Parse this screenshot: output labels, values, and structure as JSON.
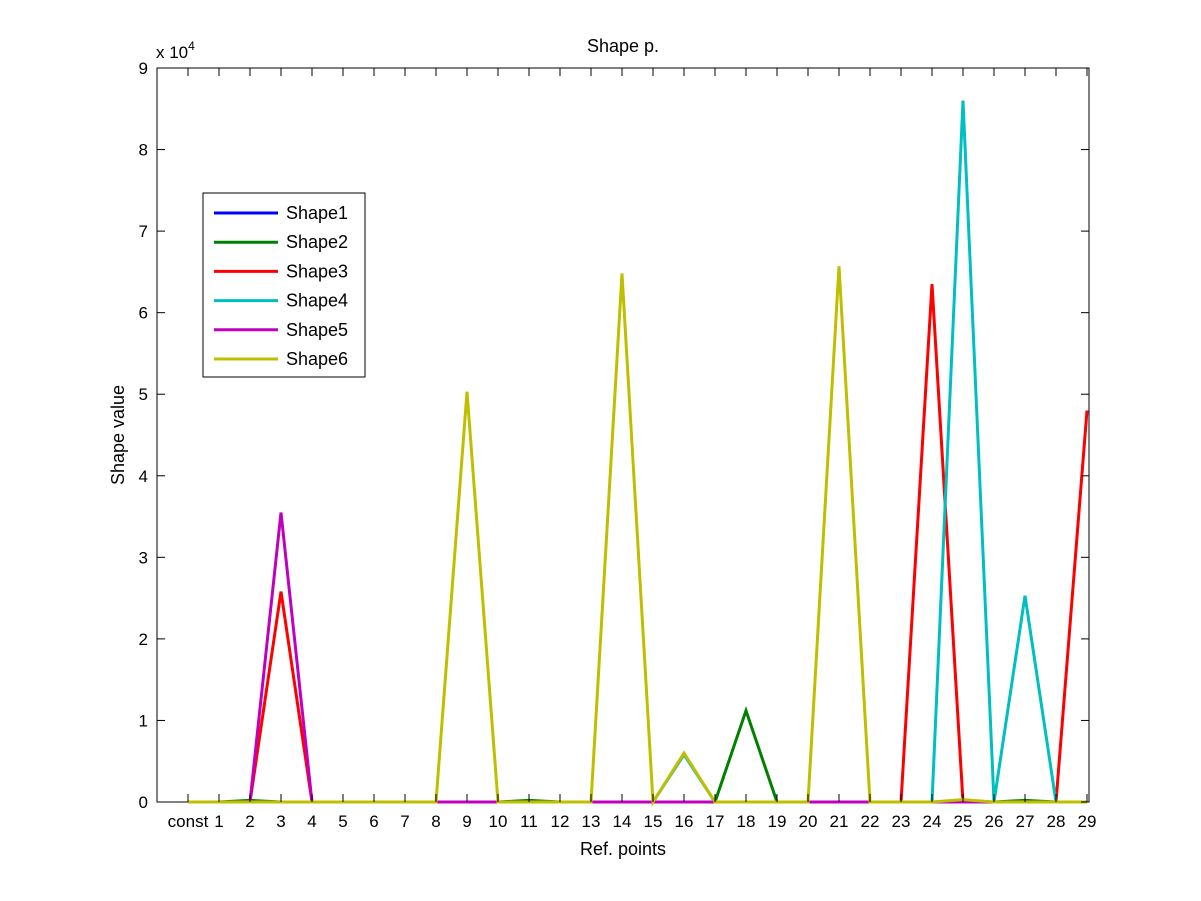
{
  "chart_data": {
    "type": "line",
    "title": "Shape p.",
    "xlabel": "Ref. points",
    "ylabel": "Shape value",
    "y_exponent_label": "x 10",
    "y_exponent_power": "4",
    "categories": [
      "const",
      "1",
      "2",
      "3",
      "4",
      "5",
      "6",
      "7",
      "8",
      "9",
      "10",
      "11",
      "12",
      "13",
      "14",
      "15",
      "16",
      "17",
      "18",
      "19",
      "20",
      "21",
      "22",
      "23",
      "24",
      "25",
      "26",
      "27",
      "28",
      "29"
    ],
    "ylim": [
      0,
      90000
    ],
    "yticks": [
      0,
      10000,
      20000,
      30000,
      40000,
      50000,
      60000,
      70000,
      80000,
      90000
    ],
    "ytick_labels": [
      "0",
      "1",
      "2",
      "3",
      "4",
      "5",
      "6",
      "7",
      "8",
      "9"
    ],
    "grid": false,
    "legend_position": "top-left",
    "series": [
      {
        "name": "Shape1",
        "color": "#0000ff",
        "values": [
          0,
          0,
          0,
          0,
          0,
          0,
          0,
          0,
          0,
          0,
          0,
          0,
          0,
          0,
          0,
          0,
          0,
          0,
          0,
          0,
          0,
          0,
          0,
          0,
          0,
          0,
          0,
          0,
          0,
          0
        ]
      },
      {
        "name": "Shape2",
        "color": "#008000",
        "values": [
          0,
          0,
          200,
          0,
          0,
          0,
          0,
          0,
          0,
          0,
          0,
          200,
          0,
          0,
          0,
          0,
          0,
          0,
          11200,
          0,
          0,
          0,
          0,
          0,
          0,
          0,
          0,
          200,
          0,
          0
        ]
      },
      {
        "name": "Shape3",
        "color": "#ff0000",
        "values": [
          0,
          0,
          0,
          25800,
          0,
          0,
          0,
          0,
          0,
          0,
          0,
          0,
          0,
          0,
          0,
          0,
          0,
          0,
          0,
          0,
          0,
          0,
          0,
          0,
          63500,
          0,
          0,
          0,
          0,
          48000
        ]
      },
      {
        "name": "Shape4",
        "color": "#00bfbf",
        "values": [
          0,
          0,
          0,
          0,
          0,
          0,
          0,
          0,
          0,
          0,
          0,
          0,
          0,
          0,
          0,
          0,
          5800,
          0,
          0,
          0,
          0,
          0,
          0,
          0,
          0,
          86000,
          0,
          25300,
          0,
          0
        ]
      },
      {
        "name": "Shape5",
        "color": "#bf00bf",
        "values": [
          0,
          0,
          0,
          35500,
          0,
          0,
          0,
          0,
          0,
          0,
          0,
          0,
          0,
          0,
          0,
          0,
          0,
          0,
          0,
          0,
          0,
          0,
          0,
          0,
          0,
          0,
          0,
          0,
          0,
          0
        ]
      },
      {
        "name": "Shape6",
        "color": "#bfbf00",
        "values": [
          0,
          0,
          0,
          0,
          0,
          0,
          0,
          0,
          0,
          50300,
          0,
          0,
          0,
          0,
          64800,
          0,
          6000,
          0,
          0,
          0,
          0,
          65700,
          0,
          0,
          0,
          300,
          0,
          0,
          0,
          0
        ]
      }
    ]
  }
}
